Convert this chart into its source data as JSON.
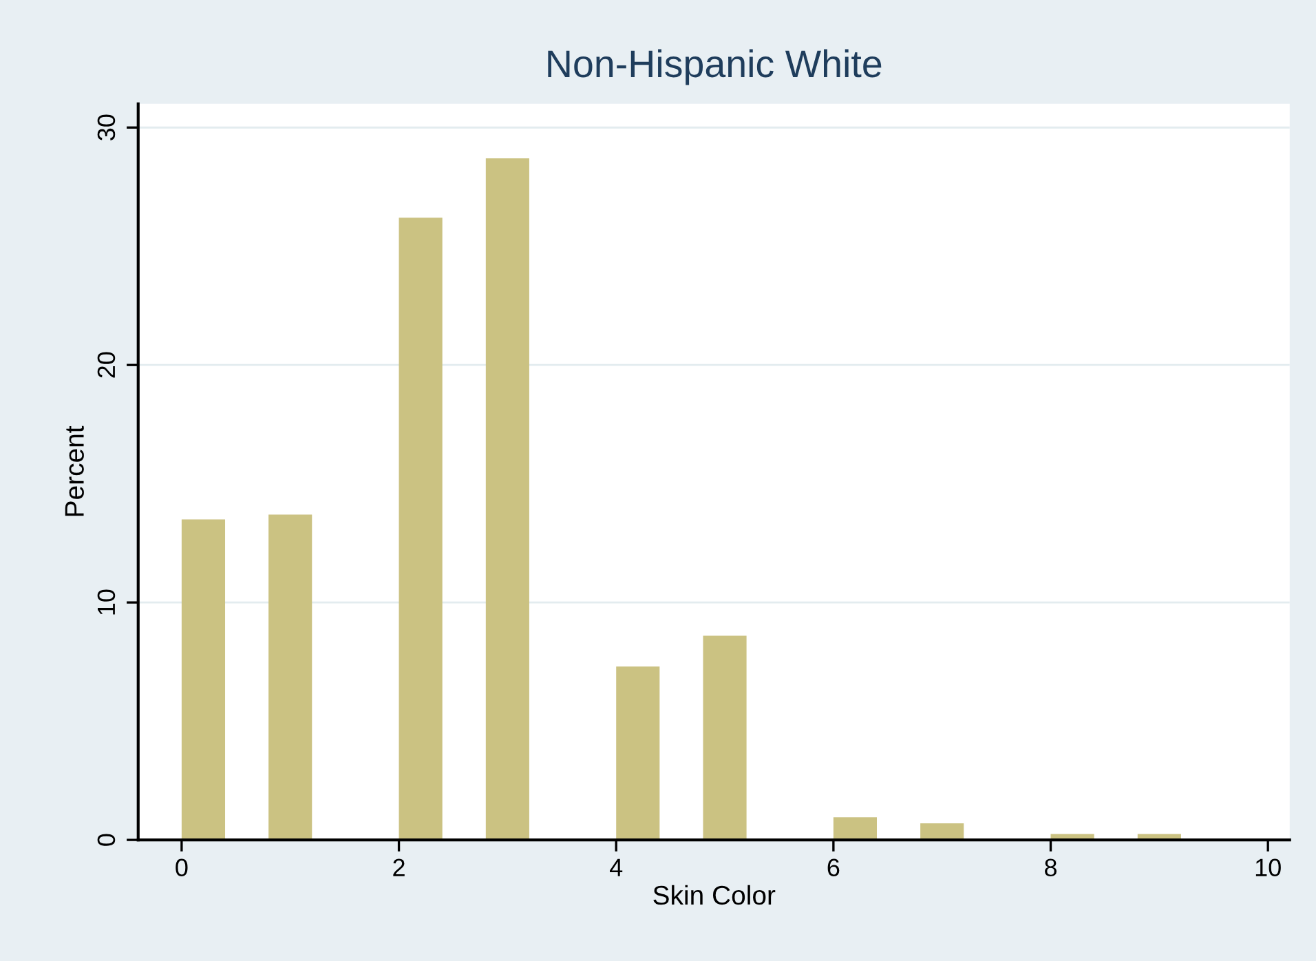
{
  "chart_data": {
    "type": "histogram",
    "title": "Non-Hispanic White",
    "xlabel": "Skin Color",
    "ylabel": "Percent",
    "bins": [
      0,
      0.4,
      0.8,
      1.2,
      1.6,
      2.0,
      2.4,
      2.8,
      3.2,
      3.6,
      4.0,
      4.4,
      4.8,
      5.2,
      5.6,
      6.0,
      6.4,
      6.8,
      7.2,
      7.6,
      8.0,
      8.4,
      8.8,
      9.2
    ],
    "values": [
      13.5,
      0,
      13.7,
      0,
      0,
      26.2,
      0,
      28.7,
      0,
      0,
      7.3,
      0,
      8.6,
      0,
      0,
      0.95,
      0,
      0.7,
      0,
      0,
      0.25,
      0,
      0.25
    ],
    "color": "#cbc282",
    "xlim": [
      -0.4,
      10.2
    ],
    "ylim": [
      0,
      31
    ],
    "xticks": [
      0,
      2,
      4,
      6,
      8,
      10
    ],
    "yticks": [
      0,
      10,
      20,
      30
    ],
    "grid": "y",
    "legend": false
  }
}
